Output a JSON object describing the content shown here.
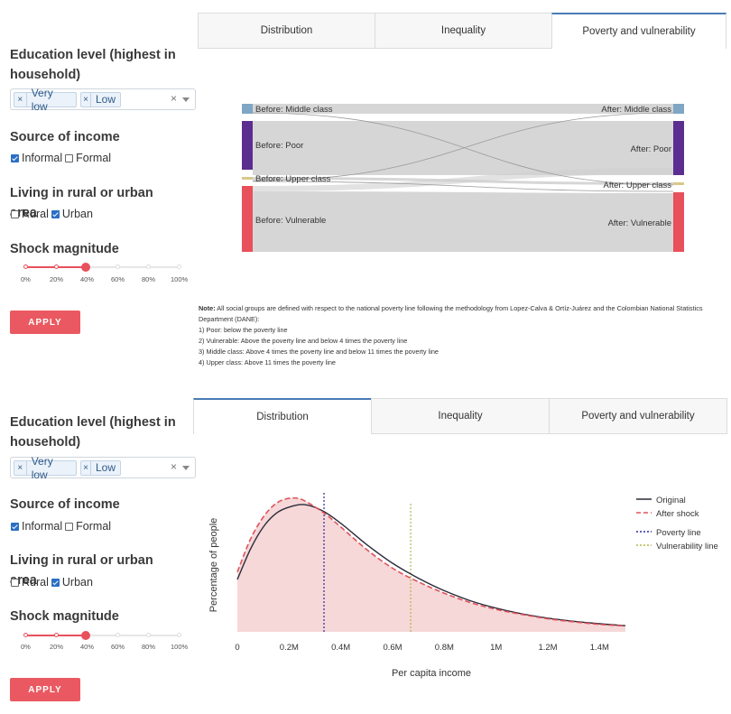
{
  "panels": [
    {
      "sidebar": {
        "education_title": "Education level (highest in household)",
        "education_chips": [
          "Very low",
          "Low"
        ],
        "income_title": "Source of income",
        "income_options": [
          {
            "label": "Informal",
            "checked": true
          },
          {
            "label": "Formal",
            "checked": false
          }
        ],
        "area_title": "Living in rural or urban area",
        "area_options": [
          {
            "label": "Rural",
            "checked": false
          },
          {
            "label": "Urban",
            "checked": true
          }
        ],
        "shock_title": "Shock magnitude",
        "shock_ticks": [
          "0%",
          "20%",
          "40%",
          "60%",
          "80%",
          "100%"
        ],
        "shock_value": "40%",
        "apply_label": "APPLY"
      },
      "tabs": [
        {
          "label": "Distribution",
          "active": false
        },
        {
          "label": "Inequality",
          "active": false
        },
        {
          "label": "Poverty and vulnerability",
          "active": true
        }
      ]
    },
    {
      "sidebar": {
        "education_title": "Education level (highest in household)",
        "education_chips": [
          "Very low",
          "Low"
        ],
        "income_title": "Source of income",
        "income_options": [
          {
            "label": "Informal",
            "checked": true
          },
          {
            "label": "Formal",
            "checked": false
          }
        ],
        "area_title": "Living in rural or urban area",
        "area_options": [
          {
            "label": "Rural",
            "checked": false
          },
          {
            "label": "Urban",
            "checked": true
          }
        ],
        "shock_title": "Shock magnitude",
        "shock_ticks": [
          "0%",
          "20%",
          "40%",
          "60%",
          "80%",
          "100%"
        ],
        "shock_value": "40%",
        "apply_label": "APPLY"
      },
      "tabs": [
        {
          "label": "Distribution",
          "active": true
        },
        {
          "label": "Inequality",
          "active": false
        },
        {
          "label": "Poverty and vulnerability",
          "active": false
        }
      ]
    }
  ],
  "sankey": {
    "left_nodes": [
      "Before: Middle class",
      "Before: Poor",
      "Before: Upper class",
      "Before: Vulnerable"
    ],
    "right_nodes": [
      "After: Middle class",
      "After: Poor",
      "After: Upper class",
      "After: Vulnerable"
    ],
    "colors": {
      "middle": "#7fa6c4",
      "poor": "#5b2d91",
      "upper": "#d9c88a",
      "vulnerable": "#e8505b",
      "flow": "#c9c9c9"
    }
  },
  "note": {
    "label": "Note:",
    "lines": [
      "All social groups are defined with respect to the national poverty line following the methodology from Lopez-Calva & Ortíz-Juárez and the Colombian National Statistics Department (DANE):",
      "1) Poor: below the poverty line",
      "2) Vulnerable: Above the poverty line and below 4 times the poverty line",
      "3) Middle class: Above 4 times the poverty line and below 11 times the poverty line",
      "4) Upper class: Above 11 times the poverty line"
    ]
  },
  "chart_data": {
    "type": "line",
    "title": "",
    "xlabel": "Per capita income",
    "ylabel": "Percentage of people",
    "xlim": [
      0,
      1500000
    ],
    "x_ticks": [
      0,
      200000,
      400000,
      600000,
      800000,
      1000000,
      1200000,
      1400000
    ],
    "x_tick_labels": [
      "0",
      "0.2M",
      "0.4M",
      "0.6M",
      "0.8M",
      "1M",
      "1.2M",
      "1.4M"
    ],
    "legend_position": "top-right",
    "series": [
      {
        "name": "Original",
        "style": "solid",
        "color": "#2b2b3a",
        "x": [
          0,
          50000,
          100000,
          150000,
          200000,
          260000,
          330000,
          400000,
          500000,
          600000,
          700000,
          800000,
          900000,
          1000000,
          1100000,
          1200000,
          1300000,
          1400000,
          1500000
        ],
        "y": [
          0.42,
          0.66,
          0.84,
          0.95,
          1.0,
          1.02,
          0.97,
          0.87,
          0.7,
          0.55,
          0.43,
          0.33,
          0.25,
          0.19,
          0.145,
          0.11,
          0.085,
          0.065,
          0.05
        ]
      },
      {
        "name": "After shock",
        "style": "dashed",
        "color": "#e0535b",
        "fill": "#f6d8d9",
        "x": [
          0,
          50000,
          100000,
          150000,
          200000,
          250000,
          330000,
          400000,
          500000,
          600000,
          700000,
          800000,
          900000,
          1000000,
          1100000,
          1200000,
          1300000,
          1400000,
          1500000
        ],
        "y": [
          0.48,
          0.74,
          0.92,
          1.03,
          1.07,
          1.06,
          0.96,
          0.84,
          0.66,
          0.51,
          0.4,
          0.31,
          0.235,
          0.18,
          0.14,
          0.105,
          0.08,
          0.06,
          0.047
        ]
      }
    ],
    "vlines": [
      {
        "name": "Poverty line",
        "x": 335000,
        "color": "#2a2a9c",
        "style": "dotted"
      },
      {
        "name": "Vulnerability line",
        "x": 670000,
        "color": "#b5b54a",
        "style": "dotted"
      }
    ]
  }
}
